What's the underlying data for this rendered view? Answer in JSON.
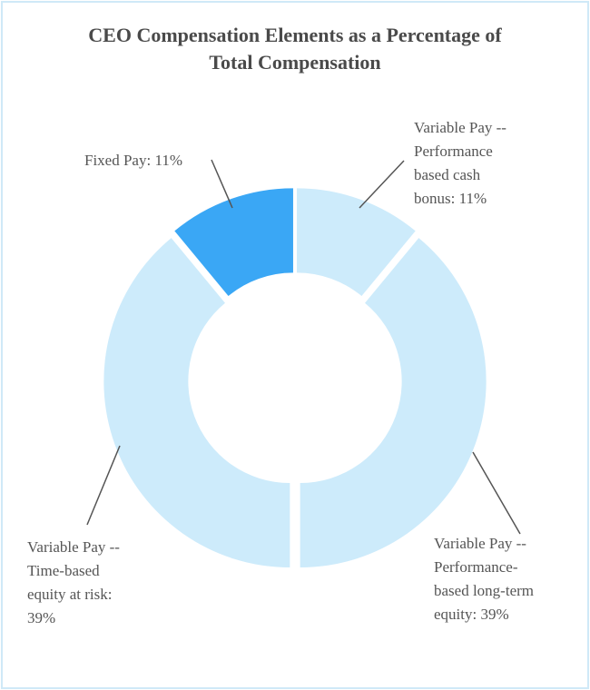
{
  "chart_data": {
    "type": "pie",
    "variant": "donut",
    "title": "CEO Compensation Elements as a Percentage of Total Compensation",
    "title_lines": [
      "CEO Compensation Elements as a Percentage of",
      "Total Compensation"
    ],
    "slices": [
      {
        "name": "Variable Pay -- Performance based cash bonus",
        "value": 11,
        "color": "#cdebfb",
        "label_lines": [
          "Variable Pay --",
          "Performance",
          "based cash",
          "bonus: 11%"
        ]
      },
      {
        "name": "Variable Pay -- Performance-based long-term equity",
        "value": 39,
        "color": "#cdebfb",
        "label_lines": [
          "Variable Pay --",
          "Performance-",
          "based long-term",
          "equity: 39%"
        ]
      },
      {
        "name": "Variable Pay -- Time-based equity at risk",
        "value": 39,
        "color": "#cdebfb",
        "label_lines": [
          "Variable Pay --",
          "Time-based",
          "equity at risk:",
          "39%"
        ]
      },
      {
        "name": "Fixed Pay",
        "value": 11,
        "color": "#3aa7f5",
        "label_lines": [
          "Fixed Pay: 11%"
        ]
      }
    ],
    "legend": "none"
  }
}
